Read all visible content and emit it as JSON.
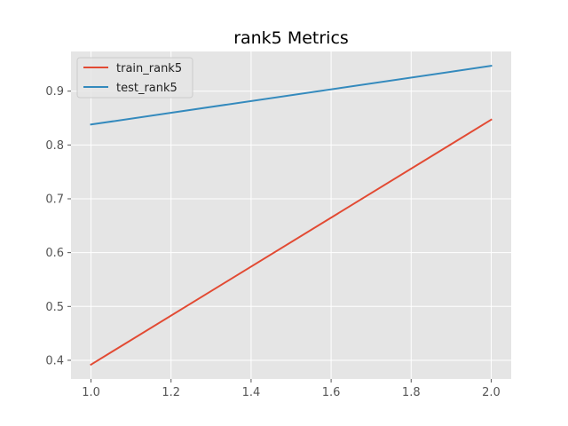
{
  "chart_data": {
    "type": "line",
    "title": "rank5 Metrics",
    "xlabel": "",
    "ylabel": "",
    "x": [
      1.0,
      2.0
    ],
    "xlim": [
      0.95,
      2.05
    ],
    "ylim": [
      0.3653,
      0.9737
    ],
    "xticks": [
      1.0,
      1.2,
      1.4,
      1.6,
      1.8,
      2.0
    ],
    "xtick_labels": [
      "1.0",
      "1.2",
      "1.4",
      "1.6",
      "1.8",
      "2.0"
    ],
    "yticks": [
      0.4,
      0.5,
      0.6,
      0.7,
      0.8,
      0.9
    ],
    "ytick_labels": [
      "0.4",
      "0.5",
      "0.6",
      "0.7",
      "0.8",
      "0.9"
    ],
    "series": [
      {
        "name": "train_rank5",
        "values": [
          0.392,
          0.847
        ],
        "color": "#E24A33"
      },
      {
        "name": "test_rank5",
        "values": [
          0.838,
          0.947
        ],
        "color": "#348ABD"
      }
    ],
    "grid": true,
    "legend_position": "top-left",
    "background_color": "#E5E5E5"
  }
}
